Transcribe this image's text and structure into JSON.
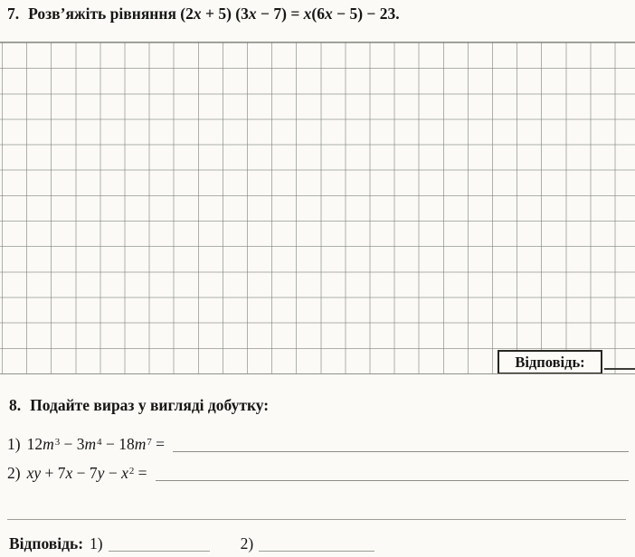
{
  "colors": {
    "paper": "#fbfaf7",
    "grid_line": "#80827b",
    "ink": "#161614",
    "answer_underline": "#8d8e85"
  },
  "problem7": {
    "number": "7.",
    "instruction": "Розв’яжіть рівняння",
    "equation_parts": [
      {
        "t": "(2"
      },
      {
        "t": "x",
        "s": "i"
      },
      {
        "t": " + 5) (3"
      },
      {
        "t": "x",
        "s": "i"
      },
      {
        "t": " − 7) = "
      },
      {
        "t": "x",
        "s": "i"
      },
      {
        "t": "(6"
      },
      {
        "t": "x",
        "s": "i"
      },
      {
        "t": " − 5) − 23."
      }
    ],
    "answer_label": "Відповідь:"
  },
  "problem8": {
    "number": "8.",
    "title": "Подайте вираз у вигляді добутку:",
    "items": [
      {
        "label": "1)",
        "parts": [
          {
            "t": "12"
          },
          {
            "t": "m",
            "s": "i"
          },
          {
            "t": "3",
            "s": "sup"
          },
          {
            "t": " − 3"
          },
          {
            "t": "m",
            "s": "i"
          },
          {
            "t": "4",
            "s": "sup"
          },
          {
            "t": " − 18"
          },
          {
            "t": "m",
            "s": "i"
          },
          {
            "t": "7",
            "s": "sup"
          },
          {
            "t": " ="
          }
        ]
      },
      {
        "label": "2)",
        "parts": [
          {
            "t": "x",
            "s": "i"
          },
          {
            "t": "y",
            "s": "i"
          },
          {
            "t": " + 7"
          },
          {
            "t": "x",
            "s": "i"
          },
          {
            "t": " − 7"
          },
          {
            "t": "y",
            "s": "i"
          },
          {
            "t": " − "
          },
          {
            "t": "x",
            "s": "i"
          },
          {
            "t": "2",
            "s": "sup"
          },
          {
            "t": " ="
          }
        ]
      }
    ]
  },
  "final_answers": {
    "label": "Відповідь:",
    "item1_label": "1)",
    "item2_label": "2)"
  }
}
